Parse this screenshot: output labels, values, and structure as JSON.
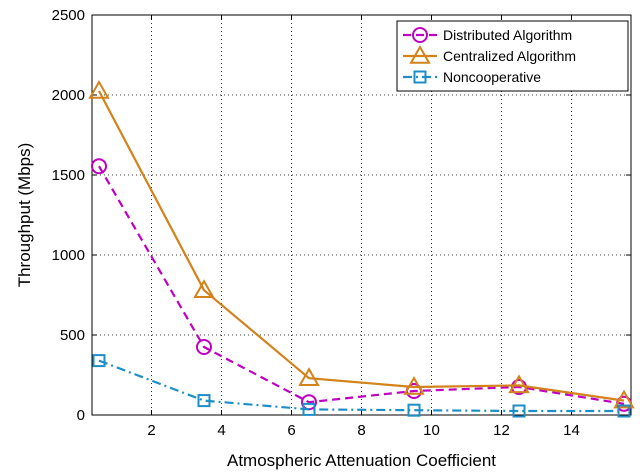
{
  "chart_data": {
    "type": "line",
    "title": "",
    "xlabel": "Atmospheric Attenuation Coefficient",
    "ylabel": "Throughput (Mbps)",
    "xlim": [
      0.3,
      15.7
    ],
    "ylim": [
      0,
      2500
    ],
    "xticks": [
      2,
      4,
      6,
      8,
      10,
      12,
      14
    ],
    "yticks": [
      0,
      500,
      1000,
      1500,
      2000,
      2500
    ],
    "grid": true,
    "legend_position": "top-right",
    "x": [
      0.5,
      3.5,
      6.5,
      9.5,
      12.5,
      15.5
    ],
    "series": [
      {
        "name": "Distributed Algorithm",
        "values": [
          1555,
          425,
          80,
          150,
          175,
          70
        ],
        "color": "#c000c0",
        "line_style": "dashed",
        "marker": "circle"
      },
      {
        "name": "Centralized Algorithm",
        "values": [
          2025,
          780,
          230,
          175,
          185,
          90
        ],
        "color": "#d4821a",
        "line_style": "solid",
        "marker": "triangle"
      },
      {
        "name": "Noncooperative",
        "values": [
          340,
          90,
          35,
          30,
          25,
          25
        ],
        "color": "#1e8ec8",
        "line_style": "dashdot",
        "marker": "square"
      }
    ]
  }
}
